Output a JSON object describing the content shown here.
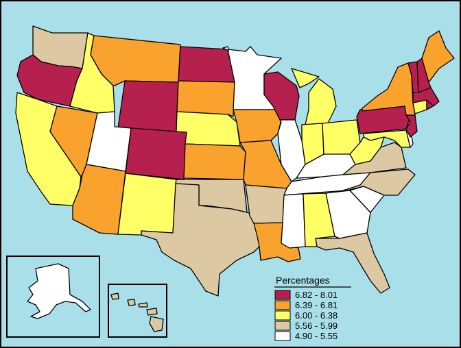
{
  "legend": {
    "title": "Percentages",
    "items": [
      {
        "label": "6.82 - 8.01",
        "color": "#b5204f"
      },
      {
        "label": "6.39 - 6.81",
        "color": "#f9a22d"
      },
      {
        "label": "6.00 - 6.38",
        "color": "#ffff66"
      },
      {
        "label": "5.56 - 5.99",
        "color": "#dcc8a2"
      },
      {
        "label": "4.90 - 5.55",
        "color": "#ffffff"
      }
    ]
  },
  "colors": {
    "water": "#a9dfe9",
    "border": "#000000"
  },
  "states": {
    "WA": "5.56 - 5.99",
    "OR": "6.82 - 8.01",
    "CA": "6.00 - 6.38",
    "NV": "6.39 - 6.81",
    "ID": "6.00 - 6.38",
    "MT": "6.39 - 6.81",
    "WY": "6.82 - 8.01",
    "UT": "4.90 - 5.55",
    "AZ": "6.39 - 6.81",
    "CO": "6.82 - 8.01",
    "NM": "6.00 - 6.38",
    "ND": "6.82 - 8.01",
    "SD": "6.39 - 6.81",
    "NE": "6.00 - 6.38",
    "KS": "6.39 - 6.81",
    "OK": "5.56 - 5.99",
    "TX": "5.56 - 5.99",
    "MN": "4.90 - 5.55",
    "IA": "6.39 - 6.81",
    "MO": "6.39 - 6.81",
    "AR": "5.56 - 5.99",
    "LA": "6.39 - 6.81",
    "WI": "6.82 - 8.01",
    "IL": "4.90 - 5.55",
    "MI": "6.00 - 6.38",
    "IN": "6.00 - 6.38",
    "OH": "6.00 - 6.38",
    "KY": "4.90 - 5.55",
    "TN": "4.90 - 5.55",
    "MS": "4.90 - 5.55",
    "AL": "6.00 - 6.38",
    "GA": "4.90 - 5.55",
    "FL": "5.56 - 5.99",
    "SC": "4.90 - 5.55",
    "NC": "5.56 - 5.99",
    "VA": "5.56 - 5.99",
    "WV": "6.00 - 6.38",
    "PA": "6.82 - 8.01",
    "NY": "6.39 - 6.81",
    "ME": "6.39 - 6.81",
    "VT": "6.82 - 8.01",
    "NH": "6.82 - 8.01",
    "MA": "6.82 - 8.01",
    "NJ": "6.82 - 8.01",
    "CT": "6.00 - 6.38",
    "MD": "6.00 - 6.38",
    "DE": "4.90 - 5.55",
    "RI": "6.82 - 8.01",
    "AK": "4.90 - 5.55",
    "HI": "5.56 - 5.99"
  }
}
